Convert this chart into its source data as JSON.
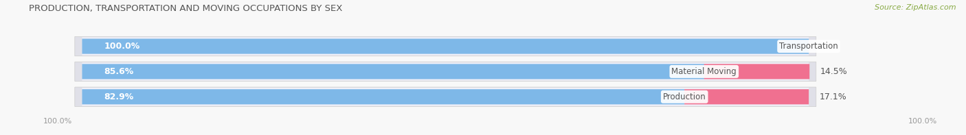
{
  "title": "PRODUCTION, TRANSPORTATION AND MOVING OCCUPATIONS BY SEX",
  "source": "Source: ZipAtlas.com",
  "categories": [
    "Transportation",
    "Material Moving",
    "Production"
  ],
  "male_values": [
    100.0,
    85.6,
    82.9
  ],
  "female_values": [
    0.0,
    14.5,
    17.1
  ],
  "male_color": "#7eb8e8",
  "female_color": "#f07090",
  "female_light_color": "#f8b8c8",
  "male_label_color": "#ffffff",
  "row_bg_color": "#e0e0e8",
  "row_inner_color": "#f0f0f8",
  "label_text_color": "#555555",
  "title_color": "#555555",
  "source_color": "#88aa44",
  "axis_label_color": "#999999",
  "bar_height": 0.58,
  "background_color": "#f8f8f8",
  "x_left_label": "100.0%",
  "x_right_label": "100.0%",
  "legend_male_color": "#7eb8e8",
  "legend_female_color": "#f07090"
}
